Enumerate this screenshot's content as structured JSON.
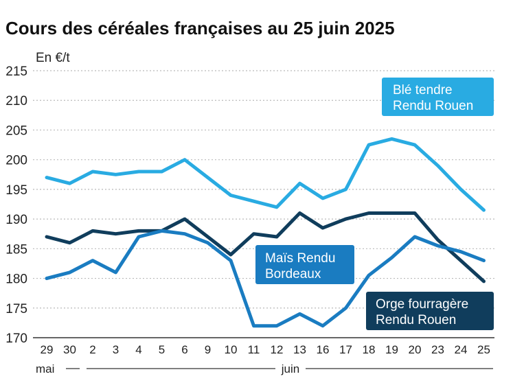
{
  "chart_data": {
    "type": "line",
    "title": "Cours des céréales françaises au 25 juin 2025",
    "ylabel": "En €/t",
    "ylim": [
      170,
      215
    ],
    "yticks": [
      170,
      175,
      180,
      185,
      190,
      195,
      200,
      205,
      210,
      215
    ],
    "categories": [
      "29",
      "30",
      "2",
      "3",
      "4",
      "5",
      "6",
      "9",
      "10",
      "11",
      "12",
      "13",
      "16",
      "17",
      "18",
      "19",
      "20",
      "23",
      "24",
      "25"
    ],
    "months": [
      {
        "label": "mai",
        "from_index": 0
      },
      {
        "label": "juin",
        "from_index": 2
      }
    ],
    "grid": true,
    "series": [
      {
        "name": "Blé tendre Rendu Rouen",
        "label_lines": [
          "Blé tendre",
          "Rendu Rouen"
        ],
        "color": "#29abe2",
        "label_position": "top-right",
        "values": [
          197,
          196,
          198,
          197.5,
          198,
          198,
          200,
          197,
          194,
          193,
          192,
          196,
          193.5,
          195,
          202.5,
          203.5,
          202.5,
          199,
          195,
          191.5
        ]
      },
      {
        "name": "Maïs Rendu Bordeaux",
        "label_lines": [
          "Maïs Rendu",
          "Bordeaux"
        ],
        "color": "#1a7cc1",
        "label_position": "center",
        "values": [
          180,
          181,
          183,
          181,
          187,
          188,
          187.5,
          186,
          183,
          172,
          172,
          174,
          172,
          175,
          180.5,
          183.5,
          187,
          185.5,
          184.5,
          183
        ]
      },
      {
        "name": "Orge fourragère Rendu Rouen",
        "label_lines": [
          "Orge fourragère",
          "Rendu Rouen"
        ],
        "color": "#103d5c",
        "label_position": "bottom-right",
        "values": [
          187,
          186,
          188,
          187.5,
          188,
          188,
          190,
          187,
          184,
          187.5,
          187,
          191,
          188.5,
          190,
          191,
          191,
          191,
          186.5,
          183,
          179.5
        ]
      }
    ]
  }
}
